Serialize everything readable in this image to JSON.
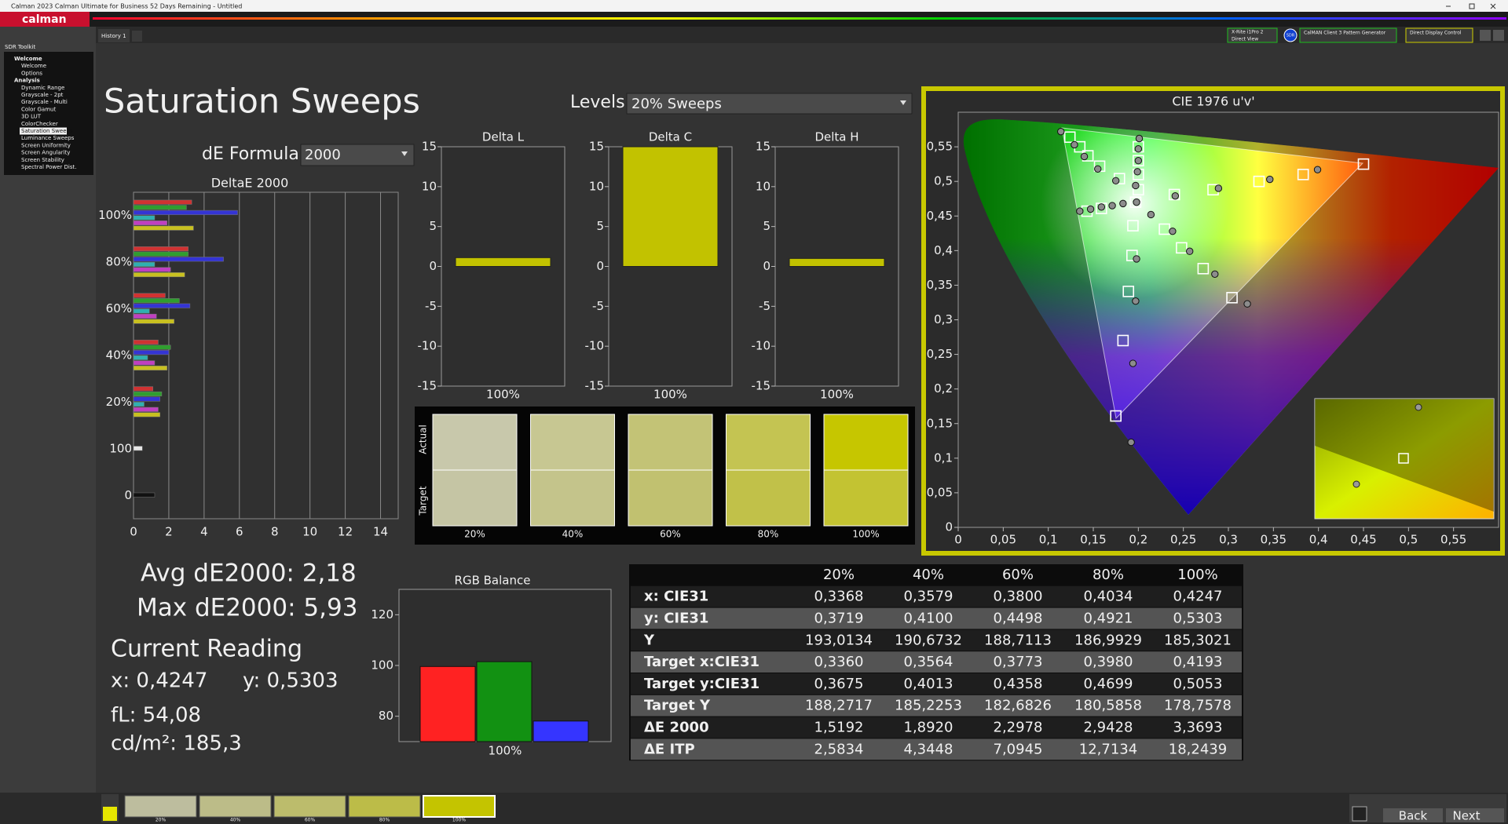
{
  "window": {
    "title": "Calman 2023 Calman Ultimate for Business 52 Days Remaining  - Untitled"
  },
  "app": {
    "logo": "calman",
    "tab": "History 1"
  },
  "sidebar": {
    "title": "SDR Toolkit",
    "selected": [
      1,
      6
    ],
    "groups": [
      {
        "label": "Welcome",
        "items": [
          "Welcome",
          "Options"
        ]
      },
      {
        "label": "Analysis",
        "items": [
          "Dynamic Range",
          "Grayscale - 2pt",
          "Grayscale - Multi",
          "Color Gamut",
          "3D LUT",
          "ColorChecker",
          "Saturation Sweeps",
          "Luminance Sweeps",
          "Screen Uniformity",
          "Screen Angularity",
          "Screen Stability",
          "Spectral Power Dist."
        ]
      }
    ]
  },
  "devices": {
    "meter": "X-Rite i1Pro 2",
    "meter_mode": "Direct View",
    "mode": "SDR",
    "generator": "CalMAN Client 3 Pattern Generator",
    "display": "Direct Display Control"
  },
  "page": {
    "title": "Saturation Sweeps",
    "levels_label": "Levels:",
    "levels_value": "20% Sweeps",
    "formula_label": "dE Formula:",
    "formula_value": "2000"
  },
  "deltae_chart": {
    "type": "hbar",
    "title": "DeltaE 2000",
    "categories": [
      "100%",
      "80%",
      "60%",
      "40%",
      "20%",
      "100",
      "0"
    ],
    "xlim": [
      0,
      15
    ],
    "xticks": [
      0,
      2,
      4,
      6,
      8,
      10,
      12,
      14
    ],
    "grid": true,
    "series": [
      {
        "color": "#d03232",
        "values": [
          3.3,
          3.1,
          1.8,
          1.4,
          1.1,
          null,
          null
        ]
      },
      {
        "color": "#2f9e2f",
        "values": [
          3.0,
          3.1,
          2.6,
          2.1,
          1.6,
          null,
          null
        ]
      },
      {
        "color": "#3434d4",
        "values": [
          5.9,
          5.1,
          3.2,
          2.0,
          1.5,
          null,
          null
        ]
      },
      {
        "color": "#2fb0b0",
        "values": [
          1.2,
          1.2,
          0.9,
          0.8,
          0.6,
          null,
          null
        ]
      },
      {
        "color": "#c040c0",
        "values": [
          1.9,
          2.1,
          1.3,
          1.2,
          1.4,
          null,
          null
        ]
      },
      {
        "color": "#c8c020",
        "values": [
          3.4,
          2.9,
          2.3,
          1.9,
          1.5,
          null,
          null
        ]
      },
      {
        "color": "#e6e6e6",
        "values": [
          null,
          null,
          null,
          null,
          null,
          0.5,
          null
        ]
      },
      {
        "color": "#111111",
        "values": [
          null,
          null,
          null,
          null,
          null,
          null,
          1.2
        ]
      }
    ]
  },
  "delta_charts": [
    {
      "type": "bar",
      "title": "Delta L",
      "categories": [
        "100%"
      ],
      "values": [
        1.1
      ],
      "color": "#c2c200",
      "ylim": [
        -15,
        15
      ],
      "yticks": [
        -15,
        -10,
        -5,
        0,
        5,
        10,
        15
      ]
    },
    {
      "type": "bar",
      "title": "Delta C",
      "categories": [
        "100%"
      ],
      "values": [
        15
      ],
      "color": "#c2c200",
      "ylim": [
        -15,
        15
      ],
      "yticks": [
        -15,
        -10,
        -5,
        0,
        5,
        10,
        15
      ]
    },
    {
      "type": "bar",
      "title": "Delta H",
      "categories": [
        "100%"
      ],
      "values": [
        1.0
      ],
      "color": "#c2c200",
      "ylim": [
        -15,
        15
      ],
      "yticks": [
        -15,
        -10,
        -5,
        0,
        5,
        10,
        15
      ]
    }
  ],
  "swatches": {
    "actual_label": "Actual",
    "target_label": "Target",
    "labels": [
      "20%",
      "40%",
      "60%",
      "80%",
      "100%"
    ],
    "actual_colors": [
      "#c8c8ab",
      "#c7c792",
      "#c3c376",
      "#c4c452",
      "#c6c600"
    ],
    "target_colors": [
      "#c5c5a4",
      "#c4c48b",
      "#c1c170",
      "#c1c149",
      "#c3c332"
    ]
  },
  "stats": {
    "avg": "Avg dE2000: 2,18",
    "max": "Max dE2000: 5,93",
    "reading_title": "Current Reading",
    "x": "x: 0,4247",
    "y": "y: 0,5303",
    "fl": "fL: 54,08",
    "luminance": "cd/m²: 185,3"
  },
  "rgb_balance": {
    "type": "bar",
    "title": "RGB Balance",
    "categories": [
      "100%"
    ],
    "ylim": [
      70,
      130
    ],
    "yticks": [
      80,
      100,
      120
    ],
    "series": [
      {
        "color": "#ff2222",
        "values": [
          99.6
        ]
      },
      {
        "color": "#129112",
        "values": [
          101.5
        ]
      },
      {
        "color": "#3535ff",
        "values": [
          78.1
        ]
      }
    ]
  },
  "table": {
    "header": [
      "20%",
      "40%",
      "60%",
      "80%",
      "100%"
    ],
    "rows": [
      [
        "x: CIE31",
        "0,3368",
        "0,3579",
        "0,3800",
        "0,4034",
        "0,4247"
      ],
      [
        "y: CIE31",
        "0,3719",
        "0,4100",
        "0,4498",
        "0,4921",
        "0,5303"
      ],
      [
        "Y",
        "193,0134",
        "190,6732",
        "188,7113",
        "186,9929",
        "185,3021"
      ],
      [
        "Target x:CIE31",
        "0,3360",
        "0,3564",
        "0,3773",
        "0,3980",
        "0,4193"
      ],
      [
        "Target y:CIE31",
        "0,3675",
        "0,4013",
        "0,4358",
        "0,4699",
        "0,5053"
      ],
      [
        "Target Y",
        "188,2717",
        "185,2253",
        "182,6826",
        "180,5858",
        "178,7578"
      ],
      [
        "ΔE 2000",
        "1,5192",
        "1,8920",
        "2,2978",
        "2,9428",
        "3,3693"
      ],
      [
        "ΔE ITP",
        "2,5834",
        "4,3448",
        "7,0945",
        "12,7134",
        "18,2439"
      ]
    ]
  },
  "cie_chart": {
    "type": "scatter",
    "title": "CIE 1976 u'v'",
    "xlim": [
      0,
      0.6
    ],
    "ylim": [
      0,
      0.6
    ],
    "xticks": [
      0,
      {
        "value": 0.05,
        "label": "0,05"
      },
      {
        "value": 0.1,
        "label": "0,1"
      },
      {
        "value": 0.15,
        "label": "0,15"
      },
      {
        "value": 0.2,
        "label": "0,2"
      },
      {
        "value": 0.25,
        "label": "0,25"
      },
      {
        "value": 0.3,
        "label": "0,3"
      },
      {
        "value": 0.35,
        "label": "0,35"
      },
      {
        "value": 0.4,
        "label": "0,4"
      },
      {
        "value": 0.45,
        "label": "0,45"
      },
      {
        "value": 0.5,
        "label": "0,5"
      },
      {
        "value": 0.55,
        "label": "0,55"
      }
    ],
    "yticks": [
      0,
      {
        "value": 0.05,
        "label": "0,05"
      },
      {
        "value": 0.1,
        "label": "0,1"
      },
      {
        "value": 0.15,
        "label": "0,15"
      },
      {
        "value": 0.2,
        "label": "0,2"
      },
      {
        "value": 0.25,
        "label": "0,25"
      },
      {
        "value": 0.3,
        "label": "0,3"
      },
      {
        "value": 0.35,
        "label": "0,35"
      },
      {
        "value": 0.4,
        "label": "0,4"
      },
      {
        "value": 0.45,
        "label": "0,45"
      },
      {
        "value": 0.5,
        "label": "0,5"
      },
      {
        "value": 0.55,
        "label": "0,55"
      }
    ],
    "series": [
      {
        "marker": "square",
        "color": "#ffffff",
        "x": [
          0.24,
          0.283,
          0.334,
          0.383,
          0.45,
          0.179,
          0.157,
          0.144,
          0.135,
          0.124,
          0.193,
          0.189,
          0.183,
          0.175,
          0.229,
          0.248,
          0.272,
          0.304,
          0.2,
          0.2,
          0.2,
          0.2,
          0.143,
          0.159,
          0.197,
          0.194
        ],
        "y": [
          0.481,
          0.488,
          0.5,
          0.51,
          0.525,
          0.504,
          0.522,
          0.537,
          0.55,
          0.564,
          0.393,
          0.341,
          0.27,
          0.161,
          0.431,
          0.404,
          0.374,
          0.332,
          0.488,
          0.51,
          0.53,
          0.55,
          0.457,
          0.461,
          0.47,
          0.436
        ]
      },
      {
        "marker": "circle",
        "color": "#8c8c8c",
        "x": [
          0.241,
          0.289,
          0.346,
          0.399,
          0.175,
          0.155,
          0.14,
          0.129,
          0.114,
          0.198,
          0.197,
          0.194,
          0.192,
          0.214,
          0.238,
          0.257,
          0.285,
          0.321,
          0.201,
          0.2,
          0.2,
          0.199,
          0.197,
          0.135,
          0.147,
          0.159,
          0.171,
          0.183,
          0.198
        ],
        "y": [
          0.479,
          0.49,
          0.503,
          0.517,
          0.501,
          0.518,
          0.536,
          0.553,
          0.572,
          0.388,
          0.327,
          0.237,
          0.123,
          0.452,
          0.428,
          0.399,
          0.366,
          0.323,
          0.562,
          0.547,
          0.53,
          0.514,
          0.494,
          0.457,
          0.46,
          0.463,
          0.465,
          0.468,
          0.47
        ]
      }
    ]
  },
  "footer": {
    "swatch_labels": [
      "20%",
      "40%",
      "60%",
      "80%",
      "100%"
    ],
    "swatch_colors": [
      "#bdbd9e",
      "#bcbc88",
      "#bcbc6c",
      "#bcbc48",
      "#c4c400"
    ],
    "selected": 4,
    "back": "Back",
    "next": "Next"
  }
}
